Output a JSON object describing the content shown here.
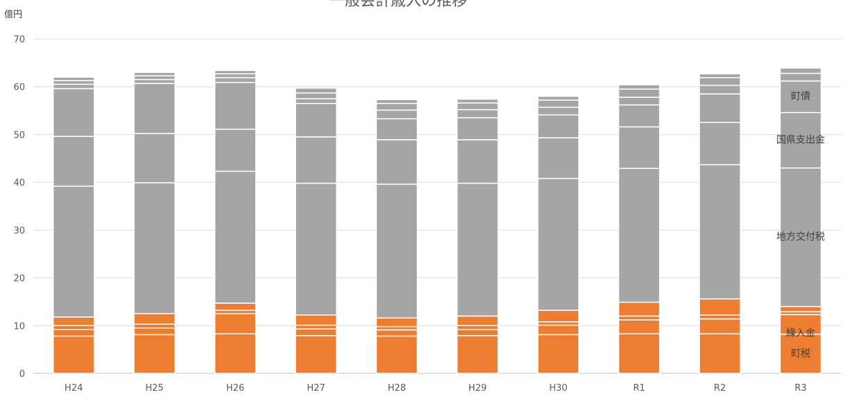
{
  "chart_data": {
    "type": "bar",
    "stacked": true,
    "title": "一般会計歳入の推移",
    "unit_label": "億円",
    "categories": [
      "H24",
      "H25",
      "H26",
      "H27",
      "H28",
      "H29",
      "H30",
      "R1",
      "R2",
      "R3"
    ],
    "ylim": [
      0,
      70
    ],
    "yticks": [
      0,
      10,
      20,
      30,
      40,
      50,
      60,
      70
    ],
    "grid": true,
    "colors": {
      "orange": "#ED7D31",
      "gray": "#A5A5A5"
    },
    "series": [
      {
        "name": "町税",
        "color": "orange",
        "values": [
          7.8,
          8.1,
          8.3,
          7.9,
          7.8,
          7.9,
          8.1,
          8.3,
          8.3,
          8.2
        ]
      },
      {
        "color": "orange",
        "values": [
          1.4,
          1.4,
          4.2,
          1.4,
          1.3,
          1.3,
          2.0,
          2.9,
          3.1,
          4.1
        ]
      },
      {
        "color": "orange",
        "values": [
          0.8,
          0.8,
          0.7,
          0.8,
          0.7,
          0.8,
          0.7,
          0.8,
          0.8,
          0.6
        ]
      },
      {
        "color": "orange",
        "values": [
          1.8,
          2.2,
          1.5,
          2.1,
          1.8,
          2.0,
          2.4,
          2.9,
          3.4,
          1.1
        ]
      },
      {
        "color": "gray",
        "values": [
          27.4,
          27.4,
          27.6,
          27.6,
          28.0,
          27.8,
          27.6,
          28.0,
          28.1,
          29.0
        ]
      },
      {
        "color": "gray",
        "values": [
          10.4,
          10.3,
          8.8,
          9.7,
          9.3,
          9.1,
          8.5,
          8.7,
          8.8,
          11.6
        ]
      },
      {
        "name": "国県支出金",
        "color": "gray",
        "values": [
          10.0,
          10.5,
          9.8,
          7.0,
          4.4,
          4.6,
          4.8,
          4.6,
          6.0,
          0
        ]
      },
      {
        "color": "gray",
        "values": [
          0.9,
          0.8,
          1.0,
          1.0,
          1.8,
          1.7,
          1.6,
          1.6,
          1.8,
          0
        ]
      },
      {
        "name": "町債",
        "color": "gray",
        "values": [
          0.8,
          0.8,
          0.8,
          1.2,
          1.4,
          1.4,
          1.5,
          1.7,
          1.6,
          0
        ]
      },
      {
        "color": "gray",
        "values": [
          0.7,
          0.7,
          0.7,
          1.0,
          0.8,
          0.8,
          0.8,
          0.9,
          0.8,
          0
        ]
      },
      {
        "color": "gray",
        "values": [
          0,
          0,
          0,
          0,
          0,
          0,
          0,
          0,
          0,
          6.6
        ]
      },
      {
        "color": "gray",
        "values": [
          0,
          0,
          0,
          0,
          0,
          0,
          0,
          0,
          0,
          1.6
        ]
      },
      {
        "color": "gray",
        "values": [
          0,
          0,
          0,
          0,
          0,
          0,
          0,
          0,
          0,
          1.1
        ]
      }
    ],
    "segment_labels": [
      {
        "text": "町税",
        "value": 4.2,
        "category": "R3"
      },
      {
        "text": "繰入金",
        "value": 8.5,
        "category": "R3"
      },
      {
        "text": "地方交付税",
        "value": 28.7,
        "category": "R3"
      },
      {
        "text": "国県支出金",
        "value": 49.0,
        "category": "R3"
      },
      {
        "text": "町債",
        "value": 58.1,
        "category": "R3"
      }
    ]
  }
}
